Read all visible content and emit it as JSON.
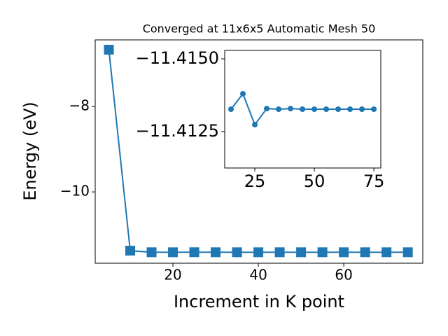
{
  "chart_data": [
    {
      "type": "line",
      "title": "Converged at 11x6x5 Automatic Mesh 50",
      "xlabel": "Increment in K point",
      "ylabel": "Energy (eV)",
      "x": [
        5,
        10,
        15,
        20,
        25,
        30,
        35,
        40,
        45,
        50,
        55,
        60,
        65,
        70,
        75
      ],
      "values": [
        -6.67,
        -11.377,
        -11.41327,
        -11.4138,
        -11.41274,
        -11.41329,
        -11.41327,
        -11.41329,
        -11.41327,
        -11.41327,
        -11.41327,
        -11.41327,
        -11.41327,
        -11.41327,
        -11.41327
      ],
      "color": "#1f77b4",
      "marker": "square",
      "xlim": [
        1.8,
        78.5
      ],
      "ylim": [
        -11.67,
        -6.44
      ],
      "xticks": [
        20,
        40,
        60
      ],
      "yticks": [
        {
          "value": -10,
          "label": "−10"
        },
        {
          "value": -8,
          "label": "−8"
        }
      ]
    },
    {
      "type": "line",
      "x": [
        15,
        20,
        25,
        30,
        35,
        40,
        45,
        50,
        55,
        60,
        65,
        70,
        75
      ],
      "values": [
        -11.41327,
        -11.4138,
        -11.41274,
        -11.41329,
        -11.41327,
        -11.41329,
        -11.41327,
        -11.41327,
        -11.41327,
        -11.41327,
        -11.41327,
        -11.41327,
        -11.41327
      ],
      "color": "#1f77b4",
      "marker": "circle",
      "xlim": [
        12.35,
        77.9
      ],
      "ylim": [
        -11.41125,
        -11.41529
      ],
      "xticks": [
        25,
        50,
        75
      ],
      "yticks": [
        {
          "value": -11.4125,
          "label": "−11.4125"
        },
        {
          "value": -11.415,
          "label": "−11.4150"
        }
      ]
    }
  ]
}
